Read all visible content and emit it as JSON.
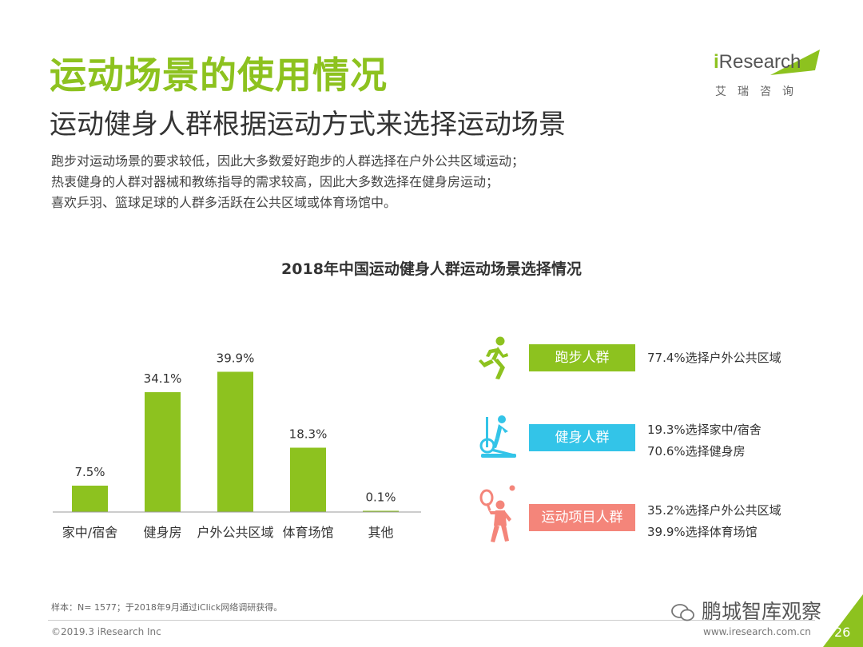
{
  "header": {
    "title": "运动场景的使用情况",
    "subtitle": "运动健身人群根据运动方式来选择运动场景",
    "description": [
      "跑步对运动场景的要求较低，因此大多数爱好跑步的人群选择在户外公共区域运动；",
      "热衷健身的人群对器械和教练指导的需求较高，因此大多数选择在健身房运动；",
      "喜欢乒羽、篮球足球的人群多活跃在公共区域或体育场馆中。"
    ]
  },
  "logo": {
    "name_i": "i",
    "name_rest": "Research",
    "chinese": "艾瑞咨询"
  },
  "colors": {
    "accent": "#8dc21f",
    "cyan": "#33c4e8",
    "pink": "#f4857a"
  },
  "chart_data": {
    "type": "bar",
    "title": "2018年中国运动健身人群运动场景选择情况",
    "categories": [
      "家中/宿舍",
      "健身房",
      "户外公共区域",
      "体育场馆",
      "其他"
    ],
    "values": [
      7.5,
      34.1,
      39.9,
      18.3,
      0.1
    ],
    "value_labels": [
      "7.5%",
      "34.1%",
      "39.9%",
      "18.3%",
      "0.1%"
    ],
    "ylim": [
      0,
      45
    ],
    "grid": false,
    "bar_color": "#8dc21f"
  },
  "groups": [
    {
      "icon": "runner-icon",
      "label": "跑步人群",
      "color": "#8dc21f",
      "notes": [
        "77.4%选择户外公共区域"
      ]
    },
    {
      "icon": "elliptical-trainer-icon",
      "label": "健身人群",
      "color": "#33c4e8",
      "notes": [
        "19.3%选择家中/宿舍",
        "70.6%选择健身房"
      ]
    },
    {
      "icon": "tennis-player-icon",
      "label": "运动项目人群",
      "color": "#f4857a",
      "notes": [
        "35.2%选择户外公共区域",
        "39.9%选择体育场馆"
      ]
    }
  ],
  "footer": {
    "footnote": "样本：N= 1577；于2018年9月通过iClick网络调研获得。",
    "copyright": "©2019.3  iResearch Inc",
    "website": "www.iresearch.com.cn",
    "page_number": "26",
    "watermark": "鹏城智库观察"
  }
}
